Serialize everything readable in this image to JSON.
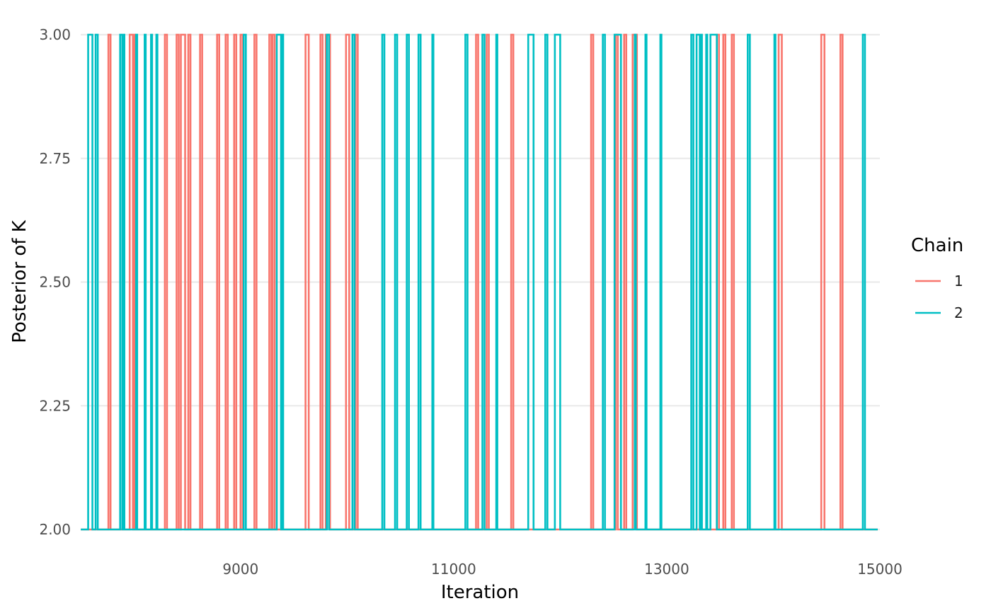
{
  "chart_data": {
    "type": "line",
    "title": "",
    "xlabel": "Iteration",
    "ylabel": "Posterior of K",
    "xlim": [
      7500,
      15000
    ],
    "ylim": [
      2.0,
      3.0
    ],
    "x_ticks": [
      9000,
      11000,
      13000,
      15000
    ],
    "x_tick_labels": [
      "9000",
      "11000",
      "13000",
      "15000"
    ],
    "y_ticks": [
      2.0,
      2.25,
      2.5,
      2.75,
      3.0
    ],
    "y_tick_labels": [
      "2.00",
      "2.25",
      "2.50",
      "2.75",
      "3.00"
    ],
    "grid": true,
    "legend": {
      "title": "Chain",
      "position": "right",
      "entries": [
        {
          "label": "1",
          "color": "#F8766D"
        },
        {
          "label": "2",
          "color": "#00BFC4"
        }
      ]
    },
    "baseline": 2.0,
    "spike_value": 3.0,
    "series": [
      {
        "name": "1",
        "color": "#F8766D",
        "x_start": 7501,
        "x_end": 14980,
        "spike_intervals": [
          [
            7760,
            7780
          ],
          [
            7960,
            7990
          ],
          [
            8000,
            8010
          ],
          [
            8290,
            8310
          ],
          [
            8400,
            8420
          ],
          [
            8440,
            8480
          ],
          [
            8510,
            8530
          ],
          [
            8620,
            8640
          ],
          [
            8780,
            8800
          ],
          [
            8860,
            8880
          ],
          [
            8940,
            8960
          ],
          [
            9000,
            9020
          ],
          [
            9130,
            9150
          ],
          [
            9270,
            9290
          ],
          [
            9300,
            9320
          ],
          [
            9610,
            9640
          ],
          [
            9750,
            9770
          ],
          [
            9800,
            9840
          ],
          [
            9990,
            10020
          ],
          [
            10080,
            10100
          ],
          [
            11210,
            11230
          ],
          [
            11310,
            11330
          ],
          [
            11540,
            11560
          ],
          [
            12290,
            12310
          ],
          [
            12520,
            12540
          ],
          [
            12600,
            12620
          ],
          [
            12680,
            12720
          ],
          [
            13470,
            13490
          ],
          [
            13530,
            13550
          ],
          [
            13610,
            13630
          ],
          [
            14050,
            14080
          ],
          [
            14450,
            14480
          ],
          [
            14630,
            14650
          ]
        ]
      },
      {
        "name": "2",
        "color": "#00BFC4",
        "x_start": 7501,
        "x_end": 14980,
        "spike_intervals": [
          [
            7570,
            7610
          ],
          [
            7640,
            7660
          ],
          [
            7870,
            7890
          ],
          [
            7900,
            7910
          ],
          [
            8020,
            8030
          ],
          [
            8100,
            8110
          ],
          [
            8160,
            8170
          ],
          [
            8210,
            8220
          ],
          [
            9030,
            9050
          ],
          [
            9340,
            9380
          ],
          [
            9390,
            9400
          ],
          [
            9810,
            9830
          ],
          [
            10050,
            10070
          ],
          [
            10330,
            10350
          ],
          [
            10450,
            10470
          ],
          [
            10560,
            10580
          ],
          [
            10670,
            10690
          ],
          [
            10800,
            10810
          ],
          [
            11110,
            11130
          ],
          [
            11270,
            11290
          ],
          [
            11400,
            11410
          ],
          [
            11700,
            11750
          ],
          [
            11860,
            11880
          ],
          [
            11950,
            12000
          ],
          [
            12400,
            12420
          ],
          [
            12510,
            12570
          ],
          [
            12700,
            12710
          ],
          [
            12800,
            12810
          ],
          [
            12940,
            12950
          ],
          [
            13230,
            13250
          ],
          [
            13280,
            13310
          ],
          [
            13320,
            13330
          ],
          [
            13370,
            13380
          ],
          [
            13410,
            13470
          ],
          [
            13760,
            13780
          ],
          [
            14010,
            14020
          ],
          [
            14840,
            14860
          ]
        ]
      }
    ]
  }
}
